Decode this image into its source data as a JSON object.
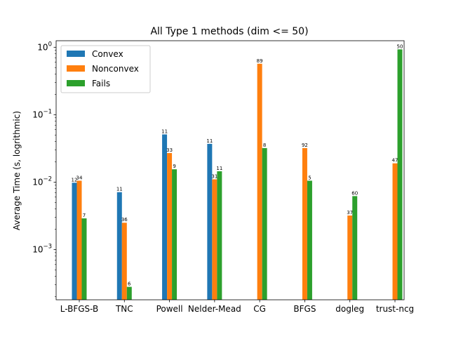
{
  "chart_data": {
    "type": "bar",
    "title": "All Type 1 methods (dim <= 50)",
    "xlabel": "",
    "ylabel": "Average Time (s, logrithmic)",
    "yscale": "log",
    "ylim": [
      0.00018,
      1.25
    ],
    "legend_position": "top-left",
    "categories": [
      "L-BFGS-B",
      "TNC",
      "Powell",
      "Nelder-Mead",
      "CG",
      "BFGS",
      "dogleg",
      "trust-ncg"
    ],
    "series": [
      {
        "name": "Convex",
        "color": "#1f77b4",
        "values": [
          0.0098,
          0.0071,
          0.051,
          0.037,
          null,
          null,
          null,
          null
        ],
        "labels": [
          "12",
          "11",
          "11",
          "11",
          "",
          "",
          "",
          ""
        ]
      },
      {
        "name": "Nonconvex",
        "color": "#ff7f0e",
        "values": [
          0.0105,
          0.0025,
          0.027,
          0.011,
          0.57,
          0.032,
          0.0032,
          0.019
        ],
        "labels": [
          "34",
          "36",
          "33",
          "31",
          "89",
          "92",
          "37",
          "47"
        ]
      },
      {
        "name": "Fails",
        "color": "#2ca02c",
        "values": [
          0.0029,
          0.00028,
          0.0155,
          0.0145,
          0.032,
          0.0105,
          0.0062,
          0.93
        ],
        "labels": [
          "7",
          "6",
          "9",
          "11",
          "8",
          "5",
          "60",
          "50"
        ]
      }
    ],
    "yticks": [
      {
        "value": 0.001,
        "base": "10",
        "exp": "−3"
      },
      {
        "value": 0.01,
        "base": "10",
        "exp": "−2"
      },
      {
        "value": 0.1,
        "base": "10",
        "exp": "−1"
      },
      {
        "value": 1,
        "base": "10",
        "exp": "0"
      }
    ]
  }
}
